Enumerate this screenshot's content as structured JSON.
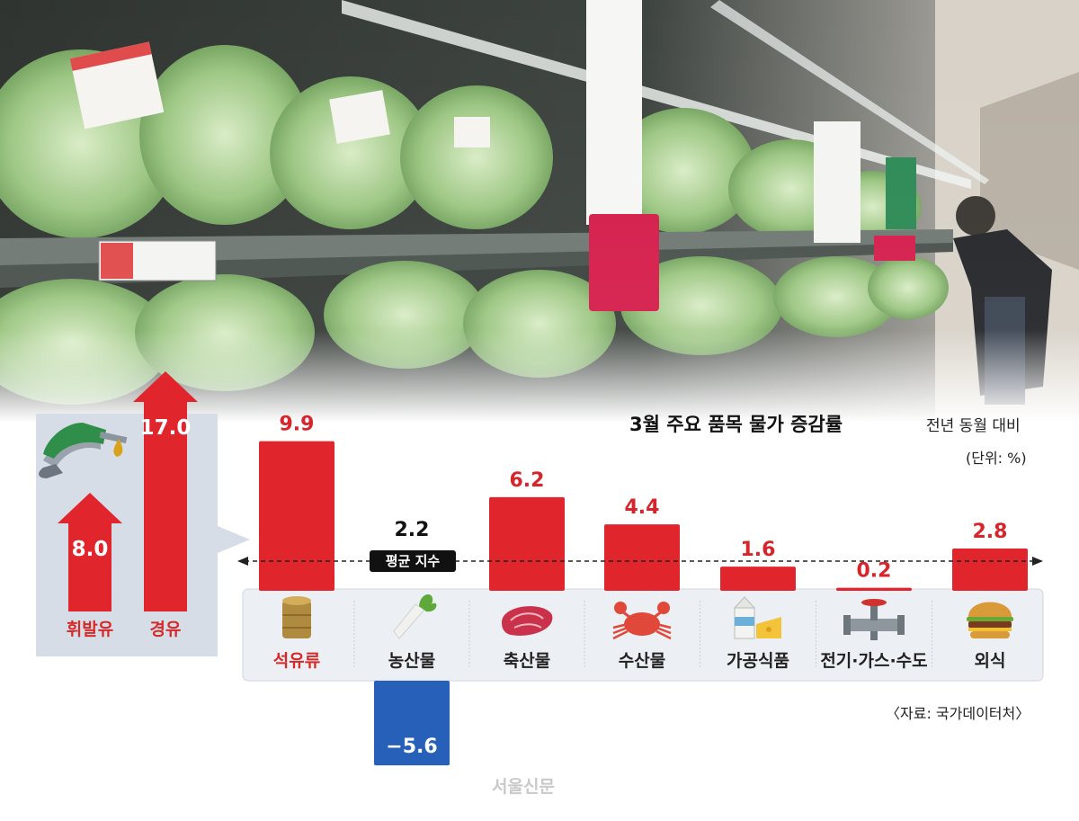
{
  "chart_data": [
    {
      "type": "bar",
      "title": "3월 주요 품목 물가 증감률",
      "subtitle": "전년 동월 대비",
      "unit_label": "(단위: %)",
      "categories": [
        "석유류",
        "농산물",
        "축산물",
        "수산물",
        "가공식품",
        "전기·가스·수도",
        "외식"
      ],
      "value_labels": [
        "9.9",
        "−5.6",
        "6.2",
        "4.4",
        "1.6",
        "0.2",
        "2.8"
      ],
      "values": [
        9.9,
        -5.6,
        6.2,
        4.4,
        1.6,
        0.2,
        2.8
      ],
      "reference_line": {
        "label": "평균 지수",
        "value": 2.2,
        "value_label": "2.2"
      },
      "icons": [
        "oil-barrel-icon",
        "radish-icon",
        "meat-icon",
        "crab-icon",
        "milk-cheese-icon",
        "pipe-valve-icon",
        "burger-icon"
      ],
      "highlight_category": "석유류",
      "colors": {
        "positive": "#e0262c",
        "negative": "#2660b8",
        "highlight_text": "#d62a2a",
        "value_text_positive": "#d6262c",
        "value_text_negative": "#ffffff"
      }
    },
    {
      "type": "bar",
      "categories": [
        "휘발유",
        "경유"
      ],
      "value_labels": [
        "8.0",
        "17.0"
      ],
      "values": [
        8.0,
        17.0
      ],
      "icons": [
        "fuel-nozzle-icon"
      ],
      "colors": {
        "bar": "#e0262c",
        "text": "#ffffff",
        "category_text": "#d62a2a"
      }
    }
  ],
  "source": "〈자료: 국가데이터처〉",
  "brand": "서울신문"
}
